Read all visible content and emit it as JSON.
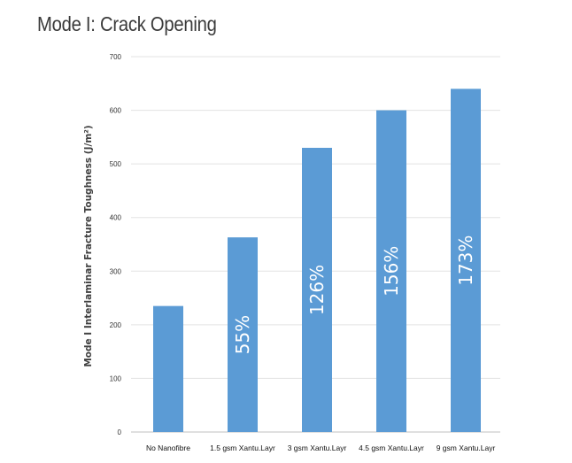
{
  "chart_data": {
    "type": "bar",
    "title": "Mode I: Crack Opening",
    "xlabel": "",
    "ylabel": "Mode I Interlaminar Fracture Toughness (J/m²)",
    "categories": [
      "No Nanofibre",
      "1.5 gsm Xantu.Layr",
      "3 gsm Xantu.Layr",
      "4.5 gsm Xantu.Layr",
      "9 gsm Xantu.Layr"
    ],
    "values": [
      235,
      363,
      530,
      600,
      640
    ],
    "bar_labels": [
      "",
      "55%",
      "126%",
      "156%",
      "173%"
    ],
    "ylim": [
      0,
      700
    ],
    "yticks": [
      "0",
      "100",
      "200",
      "300",
      "400",
      "500",
      "600",
      "700"
    ],
    "grid": true,
    "legend": "none",
    "bar_color": "#5b9bd5"
  }
}
